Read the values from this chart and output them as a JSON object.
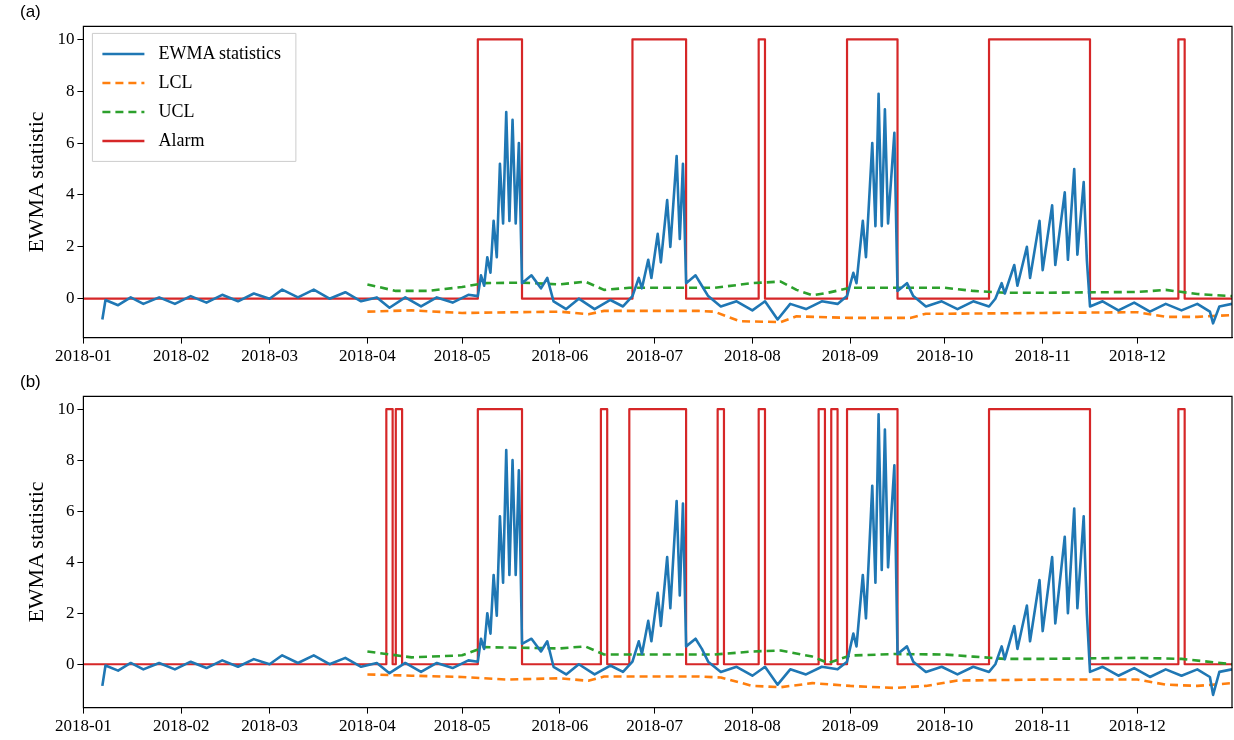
{
  "chart_data": [
    {
      "type": "line",
      "title": "(a)",
      "ylabel": "EWMA statistic",
      "xlim": [
        "2018-01-01",
        "2018-12-31"
      ],
      "xticks": [
        "2018-01",
        "2018-02",
        "2018-03",
        "2018-04",
        "2018-05",
        "2018-06",
        "2018-07",
        "2018-08",
        "2018-09",
        "2018-10",
        "2018-11",
        "2018-12"
      ],
      "ylim": [
        -1.5,
        10.5
      ],
      "yticks": [
        0,
        2,
        4,
        6,
        8,
        10
      ],
      "grid": false,
      "legend": "top left",
      "marker": "none",
      "series": [
        {
          "name": "EWMA statistics",
          "color": "#1f77b4",
          "type": "line",
          "line_style": "solid",
          "x": [
            "2018-01-07",
            "2018-01-08",
            "2018-01-12",
            "2018-01-16",
            "2018-01-20",
            "2018-01-25",
            "2018-01-30",
            "2018-02-04",
            "2018-02-09",
            "2018-02-14",
            "2018-02-19",
            "2018-02-24",
            "2018-03-01",
            "2018-03-05",
            "2018-03-10",
            "2018-03-15",
            "2018-03-20",
            "2018-03-25",
            "2018-03-30",
            "2018-04-04",
            "2018-04-08",
            "2018-04-13",
            "2018-04-18",
            "2018-04-23",
            "2018-04-28",
            "2018-05-03",
            "2018-05-06",
            "2018-05-07",
            "2018-05-08",
            "2018-05-09",
            "2018-05-10",
            "2018-05-11",
            "2018-05-12",
            "2018-05-13",
            "2018-05-14",
            "2018-05-15",
            "2018-05-16",
            "2018-05-17",
            "2018-05-18",
            "2018-05-19",
            "2018-05-20",
            "2018-05-23",
            "2018-05-26",
            "2018-05-28",
            "2018-05-30",
            "2018-06-03",
            "2018-06-07",
            "2018-06-12",
            "2018-06-17",
            "2018-06-21",
            "2018-06-24",
            "2018-06-26",
            "2018-06-27",
            "2018-06-29",
            "2018-06-30",
            "2018-07-02",
            "2018-07-03",
            "2018-07-05",
            "2018-07-06",
            "2018-07-08",
            "2018-07-09",
            "2018-07-10",
            "2018-07-11",
            "2018-07-14",
            "2018-07-16",
            "2018-07-18",
            "2018-07-22",
            "2018-07-27",
            "2018-08-01",
            "2018-08-05",
            "2018-08-09",
            "2018-08-13",
            "2018-08-18",
            "2018-08-23",
            "2018-08-28",
            "2018-08-31",
            "2018-09-02",
            "2018-09-03",
            "2018-09-05",
            "2018-09-06",
            "2018-09-08",
            "2018-09-09",
            "2018-09-10",
            "2018-09-11",
            "2018-09-12",
            "2018-09-13",
            "2018-09-15",
            "2018-09-16",
            "2018-09-19",
            "2018-09-21",
            "2018-09-25",
            "2018-09-30",
            "2018-10-05",
            "2018-10-10",
            "2018-10-15",
            "2018-10-17",
            "2018-10-19",
            "2018-10-20",
            "2018-10-23",
            "2018-10-24",
            "2018-10-27",
            "2018-10-28",
            "2018-10-31",
            "2018-11-01",
            "2018-11-04",
            "2018-11-05",
            "2018-11-08",
            "2018-11-09",
            "2018-11-11",
            "2018-11-12",
            "2018-11-14",
            "2018-11-15",
            "2018-11-16",
            "2018-11-20",
            "2018-11-25",
            "2018-11-30",
            "2018-12-05",
            "2018-12-10",
            "2018-12-15",
            "2018-12-20",
            "2018-12-24",
            "2018-12-25",
            "2018-12-27",
            "2018-12-31"
          ],
          "values": [
            -0.8,
            -0.05,
            -0.25,
            0.05,
            -0.2,
            0.05,
            -0.2,
            0.1,
            -0.15,
            0.15,
            -0.1,
            0.2,
            0,
            0.35,
            0.05,
            0.35,
            0,
            0.25,
            -0.1,
            0.05,
            -0.35,
            0.05,
            -0.3,
            0.05,
            -0.15,
            0.15,
            0.1,
            0.9,
            0.5,
            1.6,
            1.0,
            3.0,
            1.6,
            5.2,
            2.9,
            7.2,
            3.0,
            6.9,
            2.9,
            6.0,
            0.6,
            0.9,
            0.4,
            0.8,
            -0.1,
            -0.4,
            0,
            -0.4,
            -0.05,
            -0.3,
            0.1,
            0.8,
            0.4,
            1.5,
            0.8,
            2.5,
            1.4,
            3.8,
            2.0,
            5.5,
            2.3,
            5.2,
            0.6,
            0.9,
            0.5,
            0.1,
            -0.3,
            -0.1,
            -0.45,
            -0.1,
            -0.8,
            -0.2,
            -0.4,
            -0.1,
            -0.2,
            0.1,
            1.0,
            0.6,
            3.0,
            1.6,
            6.0,
            2.8,
            7.9,
            2.8,
            7.3,
            2.9,
            6.4,
            0.3,
            0.6,
            0.1,
            -0.3,
            -0.1,
            -0.4,
            -0.1,
            -0.3,
            0,
            0.6,
            0.2,
            1.3,
            0.5,
            2.0,
            0.8,
            3.0,
            1.1,
            3.6,
            1.3,
            4.1,
            1.5,
            5.0,
            1.7,
            4.5,
            1.5,
            -0.3,
            -0.1,
            -0.45,
            -0.15,
            -0.5,
            -0.2,
            -0.45,
            -0.2,
            -0.5,
            -0.95,
            -0.3,
            -0.2
          ]
        },
        {
          "name": "LCL",
          "color": "#ff7f0e",
          "type": "line",
          "line_style": "dashed",
          "x": [
            "2018-04-01",
            "2018-04-15",
            "2018-05-01",
            "2018-06-01",
            "2018-06-10",
            "2018-06-15",
            "2018-07-15",
            "2018-07-20",
            "2018-07-28",
            "2018-08-10",
            "2018-08-15",
            "2018-09-01",
            "2018-09-20",
            "2018-09-25",
            "2018-10-01",
            "2018-11-01",
            "2018-12-01",
            "2018-12-10",
            "2018-12-20",
            "2018-12-31"
          ],
          "values": [
            -0.5,
            -0.45,
            -0.55,
            -0.5,
            -0.6,
            -0.47,
            -0.47,
            -0.5,
            -0.87,
            -0.9,
            -0.68,
            -0.74,
            -0.74,
            -0.58,
            -0.58,
            -0.55,
            -0.52,
            -0.7,
            -0.7,
            -0.63
          ]
        },
        {
          "name": "UCL",
          "color": "#2ca02c",
          "type": "line",
          "line_style": "dashed",
          "x": [
            "2018-04-01",
            "2018-04-10",
            "2018-04-20",
            "2018-05-01",
            "2018-05-08",
            "2018-05-20",
            "2018-06-01",
            "2018-06-09",
            "2018-06-15",
            "2018-06-23",
            "2018-07-20",
            "2018-08-01",
            "2018-08-10",
            "2018-08-15",
            "2018-08-20",
            "2018-08-25",
            "2018-09-01",
            "2018-10-01",
            "2018-10-10",
            "2018-10-20",
            "2018-11-01",
            "2018-12-01",
            "2018-12-10",
            "2018-12-20",
            "2018-12-31"
          ],
          "values": [
            0.55,
            0.3,
            0.3,
            0.45,
            0.6,
            0.62,
            0.55,
            0.66,
            0.34,
            0.42,
            0.42,
            0.6,
            0.66,
            0.34,
            0.13,
            0.23,
            0.42,
            0.42,
            0.3,
            0.23,
            0.23,
            0.26,
            0.34,
            0.18,
            0.1
          ]
        },
        {
          "name": "Alarm",
          "color": "#d62728",
          "type": "step",
          "line_style": "solid",
          "x": [
            "2018-01-01",
            "2018-05-06",
            "2018-05-20",
            "2018-06-24",
            "2018-07-11",
            "2018-08-03",
            "2018-08-05",
            "2018-08-31",
            "2018-09-16",
            "2018-10-15",
            "2018-11-16",
            "2018-12-14",
            "2018-12-16",
            "2018-12-31"
          ],
          "values": [
            0,
            10,
            0,
            10,
            0,
            10,
            0,
            10,
            0,
            10,
            0,
            10,
            0,
            0
          ]
        }
      ]
    },
    {
      "type": "line",
      "title": "(b)",
      "ylabel": "EWMA statistic",
      "xlim": [
        "2018-01-01",
        "2018-12-31"
      ],
      "xticks": [
        "2018-01",
        "2018-02",
        "2018-03",
        "2018-04",
        "2018-05",
        "2018-06",
        "2018-07",
        "2018-08",
        "2018-09",
        "2018-10",
        "2018-11",
        "2018-12"
      ],
      "ylim": [
        -1.7,
        10.5
      ],
      "yticks": [
        0,
        2,
        4,
        6,
        8,
        10
      ],
      "grid": false,
      "legend": false,
      "marker": "none",
      "series": [
        {
          "color": "#1f77b4",
          "type": "line",
          "line_style": "solid",
          "x": [
            "2018-01-07",
            "2018-01-08",
            "2018-01-12",
            "2018-01-16",
            "2018-01-20",
            "2018-01-25",
            "2018-01-30",
            "2018-02-04",
            "2018-02-09",
            "2018-02-14",
            "2018-02-19",
            "2018-02-24",
            "2018-03-01",
            "2018-03-05",
            "2018-03-10",
            "2018-03-15",
            "2018-03-20",
            "2018-03-25",
            "2018-03-30",
            "2018-04-04",
            "2018-04-08",
            "2018-04-13",
            "2018-04-18",
            "2018-04-23",
            "2018-04-28",
            "2018-05-03",
            "2018-05-06",
            "2018-05-07",
            "2018-05-08",
            "2018-05-09",
            "2018-05-10",
            "2018-05-11",
            "2018-05-12",
            "2018-05-13",
            "2018-05-14",
            "2018-05-15",
            "2018-05-16",
            "2018-05-17",
            "2018-05-18",
            "2018-05-19",
            "2018-05-20",
            "2018-05-23",
            "2018-05-26",
            "2018-05-28",
            "2018-05-30",
            "2018-06-03",
            "2018-06-07",
            "2018-06-12",
            "2018-06-17",
            "2018-06-21",
            "2018-06-24",
            "2018-06-26",
            "2018-06-27",
            "2018-06-29",
            "2018-06-30",
            "2018-07-02",
            "2018-07-03",
            "2018-07-05",
            "2018-07-06",
            "2018-07-08",
            "2018-07-09",
            "2018-07-10",
            "2018-07-11",
            "2018-07-14",
            "2018-07-16",
            "2018-07-18",
            "2018-07-22",
            "2018-07-27",
            "2018-08-01",
            "2018-08-05",
            "2018-08-09",
            "2018-08-13",
            "2018-08-18",
            "2018-08-23",
            "2018-08-28",
            "2018-08-31",
            "2018-09-02",
            "2018-09-03",
            "2018-09-05",
            "2018-09-06",
            "2018-09-08",
            "2018-09-09",
            "2018-09-10",
            "2018-09-11",
            "2018-09-12",
            "2018-09-13",
            "2018-09-15",
            "2018-09-16",
            "2018-09-19",
            "2018-09-21",
            "2018-09-25",
            "2018-09-30",
            "2018-10-05",
            "2018-10-10",
            "2018-10-15",
            "2018-10-17",
            "2018-10-19",
            "2018-10-20",
            "2018-10-23",
            "2018-10-24",
            "2018-10-27",
            "2018-10-28",
            "2018-10-31",
            "2018-11-01",
            "2018-11-04",
            "2018-11-05",
            "2018-11-08",
            "2018-11-09",
            "2018-11-11",
            "2018-11-12",
            "2018-11-14",
            "2018-11-15",
            "2018-11-16",
            "2018-11-20",
            "2018-11-25",
            "2018-11-30",
            "2018-12-05",
            "2018-12-10",
            "2018-12-15",
            "2018-12-20",
            "2018-12-24",
            "2018-12-25",
            "2018-12-27",
            "2018-12-31"
          ],
          "values": [
            -0.85,
            -0.05,
            -0.25,
            0.05,
            -0.2,
            0.05,
            -0.2,
            0.1,
            -0.15,
            0.15,
            -0.1,
            0.2,
            0,
            0.35,
            0.05,
            0.35,
            0,
            0.25,
            -0.1,
            0.05,
            -0.35,
            0.05,
            -0.3,
            0.05,
            -0.15,
            0.15,
            0.1,
            1.0,
            0.6,
            2.0,
            1.2,
            3.5,
            1.9,
            5.8,
            3.2,
            8.4,
            3.5,
            8.0,
            3.5,
            7.6,
            0.8,
            1.0,
            0.5,
            0.9,
            -0.1,
            -0.4,
            0,
            -0.4,
            -0.05,
            -0.3,
            0.1,
            0.9,
            0.4,
            1.7,
            0.9,
            2.8,
            1.5,
            4.2,
            2.2,
            6.4,
            2.7,
            6.3,
            0.7,
            1.0,
            0.6,
            0.1,
            -0.3,
            -0.1,
            -0.45,
            -0.1,
            -0.8,
            -0.2,
            -0.4,
            -0.1,
            -0.2,
            0.1,
            1.2,
            0.7,
            3.5,
            1.8,
            7.0,
            3.2,
            9.8,
            3.7,
            9.2,
            3.8,
            7.8,
            0.4,
            0.7,
            0.1,
            -0.3,
            -0.1,
            -0.4,
            -0.1,
            -0.3,
            0,
            0.7,
            0.2,
            1.5,
            0.6,
            2.3,
            0.9,
            3.3,
            1.3,
            4.2,
            1.6,
            5.0,
            2.0,
            6.1,
            2.2,
            5.8,
            2.0,
            -0.3,
            -0.1,
            -0.45,
            -0.15,
            -0.5,
            -0.2,
            -0.45,
            -0.2,
            -0.5,
            -1.2,
            -0.3,
            -0.2
          ]
        },
        {
          "color": "#ff7f0e",
          "type": "line",
          "line_style": "dashed",
          "x": [
            "2018-04-01",
            "2018-04-15",
            "2018-05-01",
            "2018-05-15",
            "2018-06-01",
            "2018-06-10",
            "2018-06-15",
            "2018-07-15",
            "2018-07-22",
            "2018-08-01",
            "2018-08-10",
            "2018-08-20",
            "2018-09-01",
            "2018-09-15",
            "2018-09-25",
            "2018-10-05",
            "2018-11-01",
            "2018-12-01",
            "2018-12-10",
            "2018-12-20",
            "2018-12-31"
          ],
          "values": [
            -0.4,
            -0.45,
            -0.5,
            -0.6,
            -0.55,
            -0.65,
            -0.48,
            -0.48,
            -0.52,
            -0.85,
            -0.9,
            -0.74,
            -0.85,
            -0.93,
            -0.85,
            -0.64,
            -0.6,
            -0.6,
            -0.8,
            -0.85,
            -0.74
          ]
        },
        {
          "color": "#2ca02c",
          "type": "line",
          "line_style": "dashed",
          "x": [
            "2018-04-01",
            "2018-04-15",
            "2018-05-01",
            "2018-05-08",
            "2018-06-01",
            "2018-06-09",
            "2018-06-15",
            "2018-07-20",
            "2018-08-01",
            "2018-08-10",
            "2018-08-20",
            "2018-08-25",
            "2018-09-01",
            "2018-09-15",
            "2018-10-01",
            "2018-10-10",
            "2018-10-20",
            "2018-11-01",
            "2018-12-01",
            "2018-12-15",
            "2018-12-25",
            "2018-12-31"
          ],
          "values": [
            0.5,
            0.27,
            0.35,
            0.67,
            0.62,
            0.7,
            0.38,
            0.38,
            0.5,
            0.54,
            0.3,
            0.05,
            0.34,
            0.4,
            0.38,
            0.3,
            0.21,
            0.21,
            0.25,
            0.21,
            0.08,
            0
          ]
        },
        {
          "color": "#d62728",
          "type": "step",
          "line_style": "solid",
          "x": [
            "2018-01-01",
            "2018-04-07",
            "2018-04-09",
            "2018-04-10",
            "2018-04-12",
            "2018-05-06",
            "2018-05-20",
            "2018-06-14",
            "2018-06-16",
            "2018-06-23",
            "2018-07-11",
            "2018-07-21",
            "2018-07-23",
            "2018-08-03",
            "2018-08-05",
            "2018-08-22",
            "2018-08-24",
            "2018-08-26",
            "2018-08-28",
            "2018-08-31",
            "2018-09-16",
            "2018-10-15",
            "2018-11-16",
            "2018-12-14",
            "2018-12-16",
            "2018-12-31"
          ],
          "values": [
            0,
            10,
            0,
            10,
            0,
            10,
            0,
            10,
            0,
            10,
            0,
            10,
            0,
            10,
            0,
            10,
            0,
            10,
            0,
            10,
            0,
            10,
            0,
            10,
            0,
            0
          ]
        }
      ]
    }
  ]
}
